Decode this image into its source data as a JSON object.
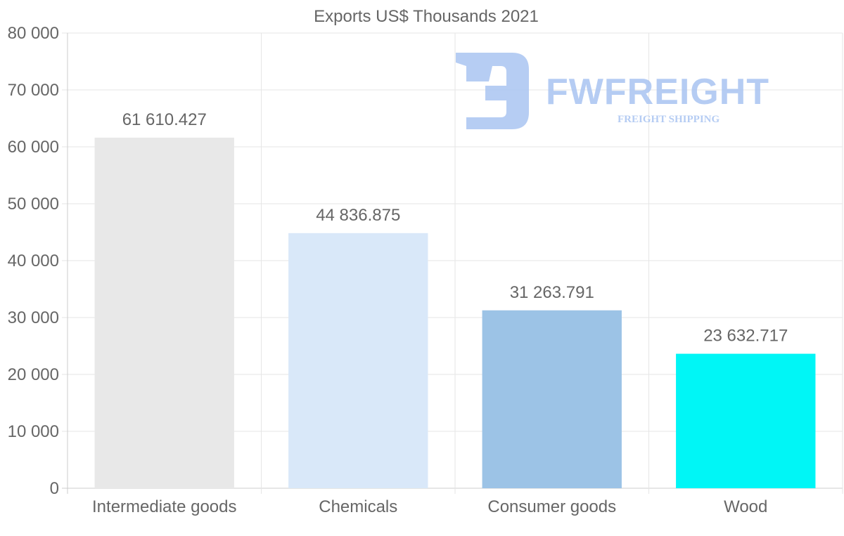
{
  "chart_data": {
    "type": "bar",
    "title": "Exports US$ Thousands 2021",
    "categories": [
      "Intermediate goods",
      "Chemicals",
      "Consumer goods",
      "Wood"
    ],
    "values": [
      61610.427,
      44836.875,
      31263.791,
      23632.717
    ],
    "value_labels": [
      "61 610.427",
      "44 836.875",
      "31 263.791",
      "23 632.717"
    ],
    "bar_colors": [
      "#e8e8e8",
      "#d9e8f9",
      "#9cc3e6",
      "#00f6f6"
    ],
    "ylim": [
      0,
      80000
    ],
    "y_ticks": [
      0,
      10000,
      20000,
      30000,
      40000,
      50000,
      60000,
      70000,
      80000
    ],
    "y_tick_labels": [
      "0",
      "10 000",
      "20 000",
      "30 000",
      "40 000",
      "50 000",
      "60 000",
      "70 000",
      "80 000"
    ],
    "xlabel": "",
    "ylabel": "",
    "grid": true
  },
  "watermark": {
    "name": "FWFREIGHT",
    "tagline": "FREIGHT SHIPPING",
    "color": "#a9c4f1"
  }
}
